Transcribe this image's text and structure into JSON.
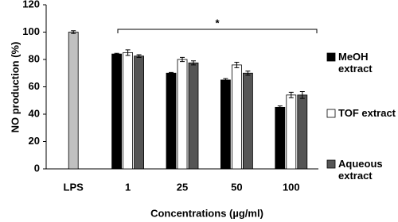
{
  "chart_data": {
    "type": "bar",
    "categories": [
      "LPS",
      "1",
      "25",
      "50",
      "100"
    ],
    "series": [
      {
        "color": "#c0c0c0",
        "values": [
          100,
          null,
          null,
          null,
          null
        ],
        "errors": [
          1,
          null,
          null,
          null,
          null
        ]
      },
      {
        "name": "MeOH extract",
        "color": "#000000",
        "values": [
          null,
          84,
          70,
          65,
          45
        ],
        "errors": [
          null,
          0.5,
          0.5,
          1,
          1
        ]
      },
      {
        "name": "TOF extract",
        "color": "#ffffff",
        "values": [
          null,
          85,
          80,
          76,
          54
        ],
        "errors": [
          null,
          2,
          1.5,
          2,
          2
        ]
      },
      {
        "name": "Aqueous extract",
        "color": "#555555",
        "values": [
          null,
          82.5,
          77.5,
          70,
          54
        ],
        "errors": [
          null,
          1,
          1.5,
          1.5,
          2.5
        ]
      }
    ],
    "annotation": "*",
    "ylabel": "NO production (%)",
    "xlabel": "Concentrations (µg/ml)",
    "ylim": [
      0,
      120
    ],
    "yticks": [
      0,
      20,
      40,
      60,
      80,
      100,
      120
    ]
  }
}
